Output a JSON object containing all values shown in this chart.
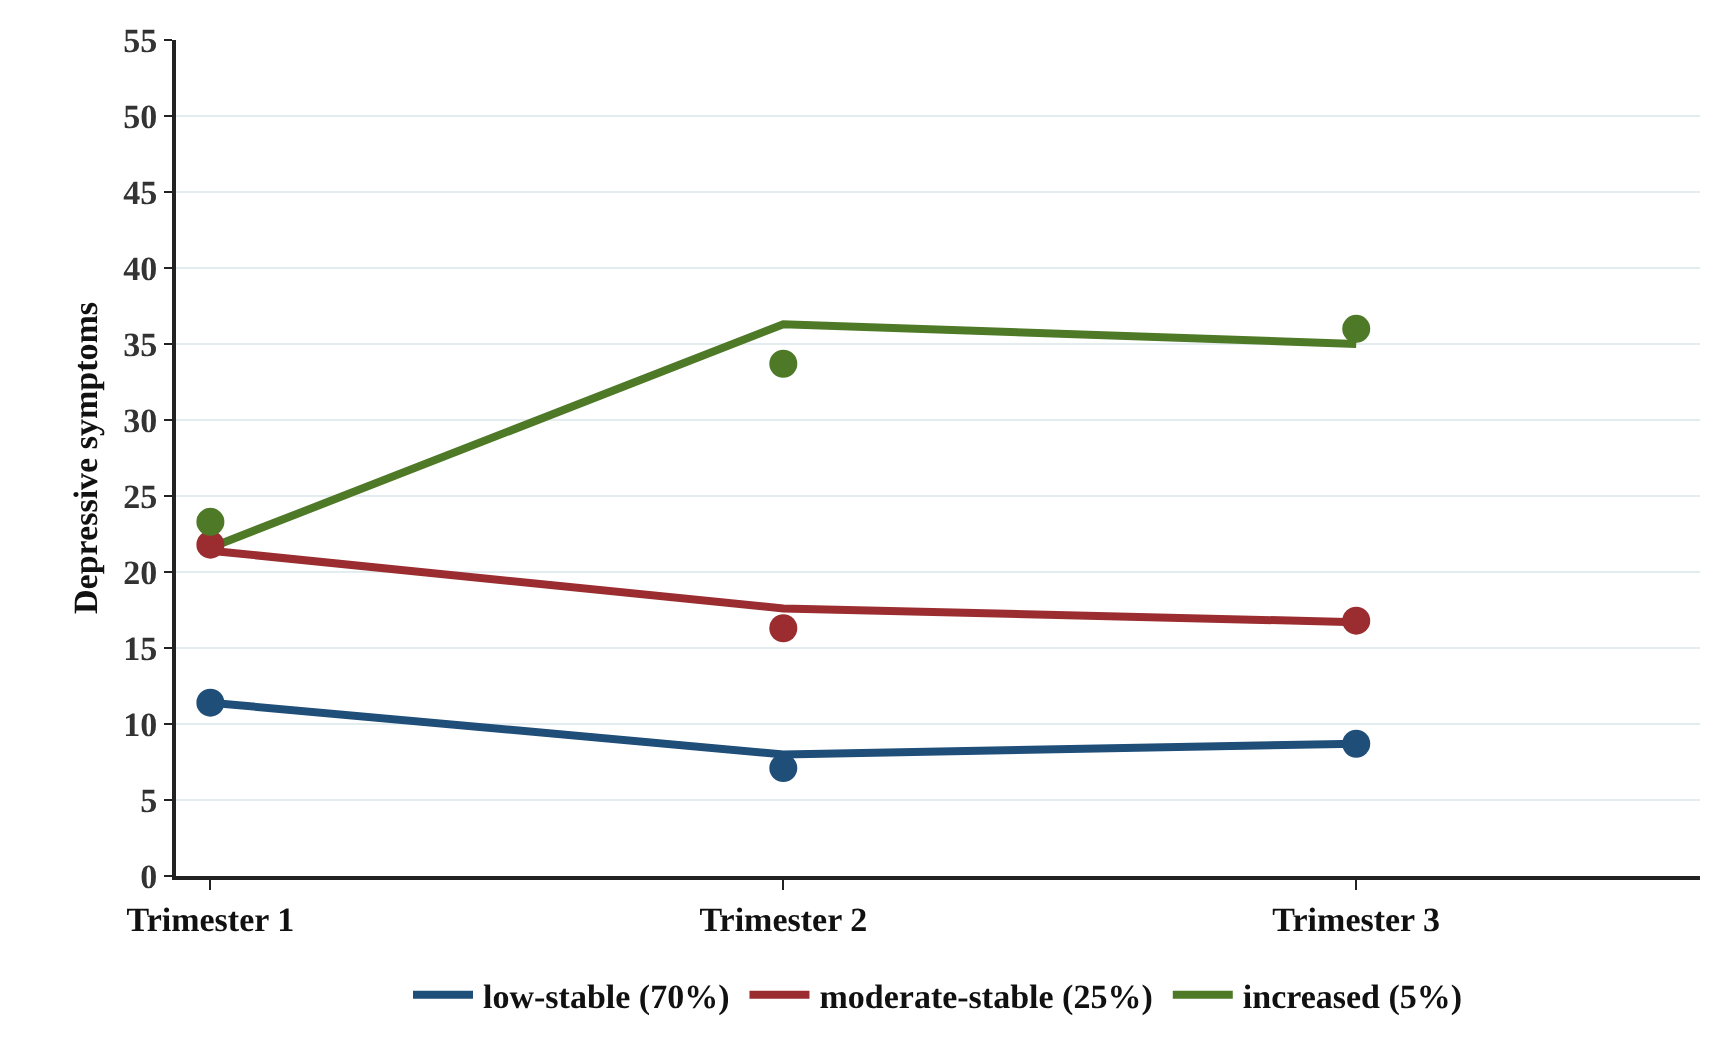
{
  "chart_data": {
    "type": "line",
    "ylabel": "Depressive symptoms",
    "categories": [
      "Trimester 1",
      "Trimester 2",
      "Trimester 3"
    ],
    "ylim": [
      0,
      55
    ],
    "yticks": [
      0,
      5,
      10,
      15,
      20,
      25,
      30,
      35,
      40,
      45,
      50,
      55
    ],
    "grid": "y",
    "legend": "bottom",
    "line_style": "solid",
    "series": [
      {
        "name": "low-stable (70%)",
        "marker": "none",
        "color": "#1f4e79",
        "values": [
          11.4,
          8.0,
          8.7
        ]
      },
      {
        "name": "moderate-stable (25%)",
        "marker": "none",
        "color": "#9b2d30",
        "values": [
          21.4,
          17.6,
          16.7
        ]
      },
      {
        "name": "increased (5%)",
        "marker": "none",
        "color": "#4e7a27",
        "values": [
          21.6,
          36.3,
          35.0
        ]
      },
      {
        "type": "scatter",
        "marker": "circle",
        "color": "#1f4e79",
        "values": [
          11.4,
          7.1,
          8.7
        ]
      },
      {
        "type": "scatter",
        "marker": "circle",
        "color": "#9b2d30",
        "values": [
          21.8,
          16.3,
          16.8
        ]
      },
      {
        "type": "scatter",
        "marker": "circle",
        "color": "#4e7a27",
        "values": [
          23.3,
          33.7,
          36.0
        ]
      }
    ]
  }
}
